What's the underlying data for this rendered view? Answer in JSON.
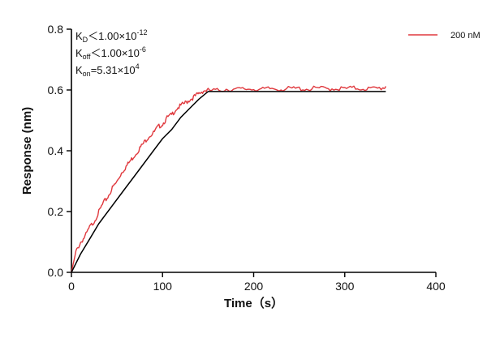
{
  "chart_data": {
    "type": "line",
    "title": "",
    "xlabel": "Time（s）",
    "ylabel": "Response (nm)",
    "xlim": [
      0,
      400
    ],
    "ylim": [
      0,
      0.8
    ],
    "xticks": [
      0,
      100,
      200,
      300,
      400
    ],
    "yticks": [
      0.0,
      0.2,
      0.4,
      0.6,
      0.8
    ],
    "xtick_labels": [
      "0",
      "100",
      "200",
      "300",
      "400"
    ],
    "ytick_labels": [
      "0.0",
      "0.2",
      "0.4",
      "0.6",
      "0.8"
    ],
    "grid": false,
    "legend_position": "top-right",
    "series": [
      {
        "name": "200 nM",
        "color": "#e0393e",
        "x": [
          0,
          5,
          10,
          15,
          20,
          25,
          30,
          35,
          40,
          45,
          50,
          55,
          60,
          65,
          70,
          75,
          80,
          85,
          90,
          95,
          100,
          105,
          110,
          115,
          120,
          125,
          130,
          135,
          140,
          145,
          150,
          160,
          170,
          180,
          190,
          200,
          210,
          220,
          230,
          240,
          250,
          260,
          270,
          280,
          290,
          300,
          310,
          320,
          330,
          340,
          345
        ],
        "y": [
          0.0,
          0.07,
          0.1,
          0.12,
          0.15,
          0.17,
          0.2,
          0.23,
          0.25,
          0.28,
          0.3,
          0.33,
          0.35,
          0.37,
          0.39,
          0.41,
          0.43,
          0.45,
          0.46,
          0.48,
          0.49,
          0.51,
          0.52,
          0.54,
          0.55,
          0.56,
          0.57,
          0.58,
          0.59,
          0.6,
          0.6,
          0.6,
          0.605,
          0.603,
          0.605,
          0.606,
          0.603,
          0.607,
          0.605,
          0.606,
          0.607,
          0.605,
          0.608,
          0.606,
          0.607,
          0.606,
          0.608,
          0.607,
          0.606,
          0.608,
          0.612
        ]
      },
      {
        "name": "",
        "role": "fit",
        "color": "#000000",
        "x": [
          0,
          10,
          20,
          30,
          40,
          50,
          60,
          70,
          80,
          90,
          100,
          110,
          120,
          130,
          140,
          150,
          200,
          250,
          300,
          345
        ],
        "y": [
          0.0,
          0.06,
          0.11,
          0.16,
          0.2,
          0.24,
          0.28,
          0.32,
          0.36,
          0.4,
          0.44,
          0.47,
          0.51,
          0.54,
          0.57,
          0.595,
          0.595,
          0.595,
          0.595,
          0.595
        ]
      }
    ],
    "annotations": {
      "kd": {
        "base": "K",
        "sub": "D",
        "rel": "＜1.00×10",
        "exp": "-12"
      },
      "koff": {
        "base": "K",
        "sub": "off",
        "rel": "＜1.00×10",
        "exp": "-6"
      },
      "kon": {
        "base": "K",
        "sub": "on",
        "rel": "=5.31×10",
        "exp": "4"
      }
    }
  }
}
